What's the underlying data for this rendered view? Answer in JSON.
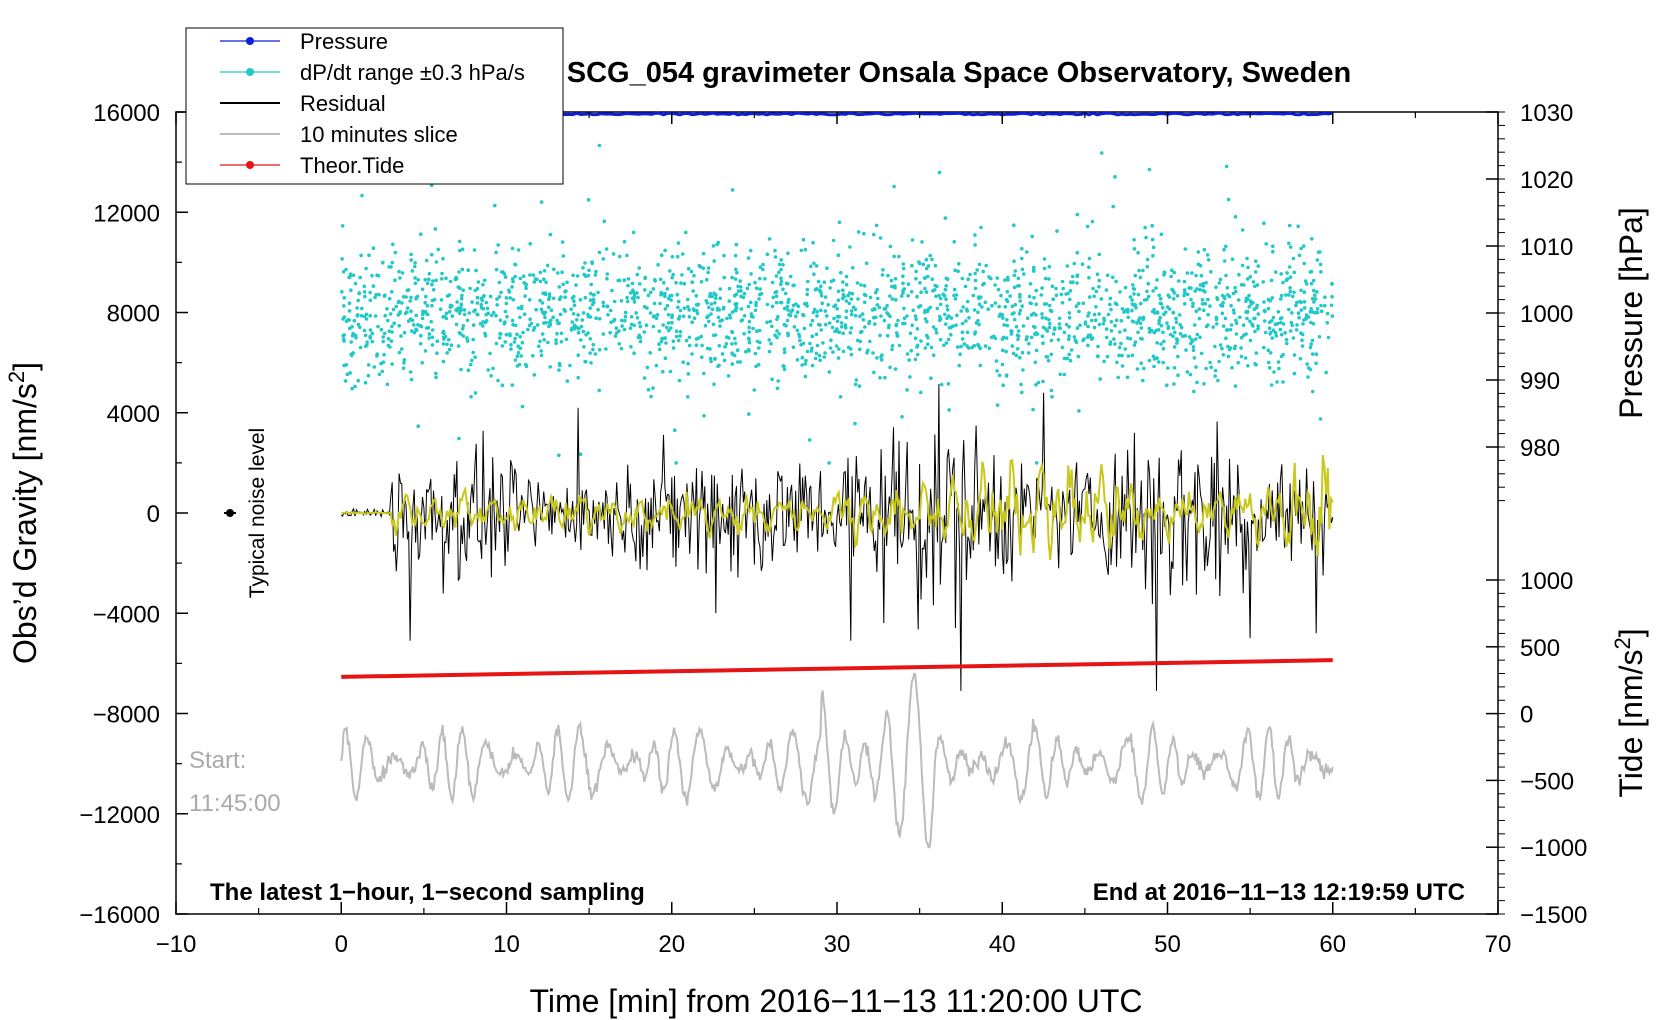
{
  "chart_data": {
    "type": "line",
    "title": "SCG_054 gravimeter Onsala Space Observatory, Sweden",
    "xlabel": "Time [min] from 2016−11−13 11:20:00 UTC",
    "xlim": [
      -10,
      70
    ],
    "x_ticks": [
      "−10",
      "0",
      "10",
      "20",
      "30",
      "40",
      "50",
      "60",
      "70"
    ],
    "ylabel_left": "Obs’d Gravity [nm/s",
    "ylabel_left_sup": "2",
    "ylabel_left_close": "]",
    "ylim_left": [
      -16000,
      16000
    ],
    "y_left_ticks": [
      "16000",
      "12000",
      "8000",
      "4000",
      "0",
      "−4000",
      "−8000",
      "−12000",
      "−16000"
    ],
    "ylabel_pressure": "Pressure [hPa]",
    "pressure_range": [
      970,
      1030
    ],
    "pressure_ticks": [
      "1030",
      "1020",
      "1010",
      "1000",
      "990",
      "980"
    ],
    "ylabel_tide": "Tide [nm/s",
    "ylabel_tide_sup": "2",
    "ylabel_tide_close": "]",
    "tide_range": [
      -1500,
      1000
    ],
    "tide_ticks": [
      "1000",
      "500",
      "0",
      "−500",
      "−1000",
      "−1500"
    ],
    "legend": [
      {
        "label": "Pressure",
        "color": "#0a1edc",
        "marker": "dot"
      },
      {
        "label": "dP/dt range ±0.3 hPa/s",
        "color": "#20c8c8",
        "marker": "dot"
      },
      {
        "label": "Residual",
        "color": "#000000",
        "marker": "none"
      },
      {
        "label": "10 minutes slice",
        "color": "#bbbbbb",
        "marker": "none"
      },
      {
        "label": "Theor.Tide",
        "color": "#e61414",
        "marker": "dot"
      }
    ],
    "series": [
      {
        "name": "Pressure",
        "axis": "pressure",
        "x_range": [
          0,
          60
        ],
        "approx_value": 1029.7
      },
      {
        "name": "dP/dt range ±0.3 hPa/s",
        "axis": "gravity",
        "x_range": [
          0,
          60
        ],
        "center": 8000,
        "spread": 3500
      },
      {
        "name": "Residual",
        "axis": "gravity",
        "x_range": [
          0,
          60
        ],
        "center": 0,
        "peaks": [
          5700,
          -5100,
          -7100,
          6200,
          -7100
        ]
      },
      {
        "name": "Residual (filtered)",
        "axis": "gravity",
        "color": "#c8c81e",
        "x_range": [
          0,
          60
        ]
      },
      {
        "name": "10 minutes slice",
        "axis": "gravity",
        "x_range": [
          0,
          60
        ],
        "center": -10000
      },
      {
        "name": "Theor.Tide",
        "axis": "tide",
        "x_range": [
          0,
          60
        ],
        "values_start_end": [
          275,
          400
        ]
      }
    ],
    "annotations": {
      "noise_label": "Typical noise level",
      "start_label": "Start:",
      "start_time": "11:45:00",
      "bottom_left": "The latest 1−hour, 1−second sampling",
      "bottom_right": "End at 2016−11−13 12:19:59 UTC"
    },
    "colors": {
      "pressure": "#0a1edc",
      "dpdt": "#20c8c8",
      "residual": "#000000",
      "filtered": "#c8c81e",
      "slice": "#bbbbbb",
      "tide": "#e61414"
    }
  }
}
